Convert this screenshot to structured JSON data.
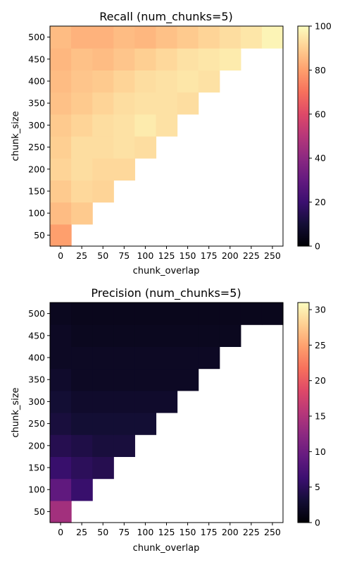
{
  "chart_data": [
    {
      "type": "heatmap",
      "title": "Recall (num_chunks=5)",
      "xlabel": "chunk_overlap",
      "ylabel": "chunk_size",
      "x": [
        0,
        25,
        50,
        75,
        100,
        125,
        150,
        175,
        200,
        225,
        250
      ],
      "y": [
        50,
        100,
        150,
        200,
        250,
        300,
        350,
        400,
        450,
        500
      ],
      "xticks": [
        "0",
        "25",
        "50",
        "75",
        "100",
        "125",
        "150",
        "175",
        "200",
        "225",
        "250"
      ],
      "yticks": [
        "50",
        "100",
        "150",
        "200",
        "250",
        "300",
        "350",
        "400",
        "450",
        "500"
      ],
      "colormap": "magma",
      "clim": [
        0,
        100
      ],
      "colorbar_ticks": [
        "0",
        "20",
        "40",
        "60",
        "80",
        "100"
      ],
      "values": [
        [
          80,
          null,
          null,
          null,
          null,
          null,
          null,
          null,
          null,
          null,
          null
        ],
        [
          86,
          89,
          null,
          null,
          null,
          null,
          null,
          null,
          null,
          null,
          null
        ],
        [
          89,
          92,
          91,
          null,
          null,
          null,
          null,
          null,
          null,
          null,
          null
        ],
        [
          91,
          93,
          92,
          92,
          null,
          null,
          null,
          null,
          null,
          null,
          null
        ],
        [
          90,
          93,
          93,
          94,
          93,
          null,
          null,
          null,
          null,
          null,
          null
        ],
        [
          89,
          91,
          93,
          94,
          96,
          94,
          null,
          null,
          null,
          null,
          null
        ],
        [
          87,
          89,
          91,
          93,
          94,
          94,
          93,
          null,
          null,
          null,
          null
        ],
        [
          86,
          88,
          89,
          91,
          93,
          94,
          95,
          94,
          null,
          null,
          null
        ],
        [
          85,
          87,
          86,
          88,
          90,
          92,
          94,
          95,
          96,
          null,
          null
        ],
        [
          86,
          84,
          84,
          86,
          85,
          87,
          89,
          91,
          93,
          95,
          98
        ]
      ]
    },
    {
      "type": "heatmap",
      "title": "Precision (num_chunks=5)",
      "xlabel": "chunk_overlap",
      "ylabel": "chunk_size",
      "x": [
        0,
        25,
        50,
        75,
        100,
        125,
        150,
        175,
        200,
        225,
        250
      ],
      "y": [
        50,
        100,
        150,
        200,
        250,
        300,
        350,
        400,
        450,
        500
      ],
      "xticks": [
        "0",
        "25",
        "50",
        "75",
        "100",
        "125",
        "150",
        "175",
        "200",
        "225",
        "250"
      ],
      "yticks": [
        "50",
        "100",
        "150",
        "200",
        "250",
        "300",
        "350",
        "400",
        "450",
        "500"
      ],
      "colormap": "magma",
      "clim": [
        0,
        31
      ],
      "colorbar_ticks": [
        "0",
        "5",
        "10",
        "15",
        "20",
        "25",
        "30"
      ],
      "values": [
        [
          14,
          null,
          null,
          null,
          null,
          null,
          null,
          null,
          null,
          null,
          null
        ],
        [
          9,
          6,
          null,
          null,
          null,
          null,
          null,
          null,
          null,
          null,
          null
        ],
        [
          6,
          5,
          4.5,
          null,
          null,
          null,
          null,
          null,
          null,
          null,
          null
        ],
        [
          4.5,
          4,
          3.5,
          3.5,
          null,
          null,
          null,
          null,
          null,
          null,
          null
        ],
        [
          3.5,
          3,
          3,
          3,
          3,
          null,
          null,
          null,
          null,
          null,
          null
        ],
        [
          3,
          2.5,
          2.5,
          2.5,
          2.5,
          2.5,
          null,
          null,
          null,
          null,
          null
        ],
        [
          2.5,
          2,
          2,
          2,
          2,
          2,
          2,
          null,
          null,
          null,
          null
        ],
        [
          2,
          2,
          2,
          2,
          2,
          2,
          2,
          2,
          null,
          null,
          null
        ],
        [
          2,
          1.7,
          1.7,
          1.7,
          1.7,
          1.7,
          1.7,
          1.7,
          1.7,
          null,
          null
        ],
        [
          1.7,
          1.5,
          1.5,
          1.5,
          1.5,
          1.5,
          1.5,
          1.5,
          1.5,
          1.5,
          1.5
        ]
      ]
    }
  ]
}
